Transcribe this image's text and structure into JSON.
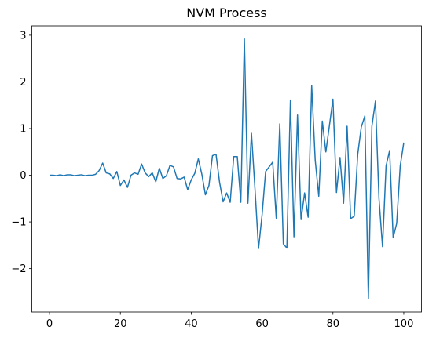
{
  "chart_data": {
    "type": "line",
    "title": "NVM Process",
    "x": [
      0,
      1,
      2,
      3,
      4,
      5,
      6,
      7,
      8,
      9,
      10,
      11,
      12,
      13,
      14,
      15,
      16,
      17,
      18,
      19,
      20,
      21,
      22,
      23,
      24,
      25,
      26,
      27,
      28,
      29,
      30,
      31,
      32,
      33,
      34,
      35,
      36,
      37,
      38,
      39,
      40,
      41,
      42,
      43,
      44,
      45,
      46,
      47,
      48,
      49,
      50,
      51,
      52,
      53,
      54,
      55,
      56,
      57,
      58,
      59,
      60,
      61,
      62,
      63,
      64,
      65,
      66,
      67,
      68,
      69,
      70,
      71,
      72,
      73,
      74,
      75,
      76,
      77,
      78,
      79,
      80,
      81,
      82,
      83,
      84,
      85,
      86,
      87,
      88,
      89,
      90,
      91,
      92,
      93,
      94,
      95,
      96,
      97,
      98,
      99,
      100
    ],
    "series": [
      {
        "color": "#1f77b4",
        "values": [
          0,
          0,
          -0.01,
          0.01,
          -0.01,
          0.01,
          0.01,
          -0.01,
          0,
          0.01,
          -0.01,
          0,
          0,
          0.02,
          0.1,
          0.26,
          0.05,
          0.03,
          -0.07,
          0.08,
          -0.22,
          -0.1,
          -0.26,
          0,
          0.05,
          0.02,
          0.24,
          0.05,
          -0.03,
          0.05,
          -0.14,
          0.15,
          -0.07,
          -0.01,
          0.21,
          0.18,
          -0.07,
          -0.08,
          -0.04,
          -0.31,
          -0.1,
          0.04,
          0.35,
          0.02,
          -0.42,
          -0.22,
          0.42,
          0.45,
          -0.15,
          -0.57,
          -0.38,
          -0.58,
          0.4,
          0.4,
          -0.58,
          2.92,
          -0.6,
          0.9,
          -0.3,
          -1.57,
          -0.85,
          0.08,
          0.18,
          0.28,
          -0.92,
          1.1,
          -1.47,
          -1.56,
          1.61,
          -1.32,
          1.29,
          -0.95,
          -0.38,
          -0.9,
          1.92,
          0.32,
          -0.45,
          1.16,
          0.5,
          1.06,
          1.63,
          -0.37,
          0.38,
          -0.6,
          1.05,
          -0.93,
          -0.88,
          0.45,
          1.03,
          1.27,
          -2.65,
          1.05,
          1.59,
          -0.5,
          -1.53,
          0.2,
          0.53,
          -1.34,
          -1.03,
          0.2,
          0.7
        ]
      }
    ],
    "xlim": [
      -5,
      105
    ],
    "xticks": [
      0,
      20,
      40,
      60,
      80,
      100
    ],
    "ylim": [
      -2.93,
      3.2
    ],
    "yticks": [
      {
        "value": -2,
        "label": "−2"
      },
      {
        "value": -1,
        "label": "−1"
      },
      0,
      1,
      2,
      3
    ]
  }
}
